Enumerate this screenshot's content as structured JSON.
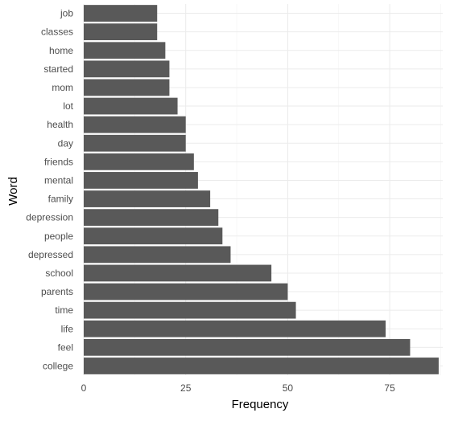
{
  "chart_data": {
    "type": "bar",
    "orientation": "horizontal",
    "xlabel": "Frequency",
    "ylabel": "Word",
    "xlim": [
      0,
      88
    ],
    "xticks": [
      0,
      25,
      50,
      75
    ],
    "grid": true,
    "categories": [
      "job",
      "classes",
      "home",
      "started",
      "mom",
      "lot",
      "health",
      "day",
      "friends",
      "mental",
      "family",
      "depression",
      "people",
      "depressed",
      "school",
      "parents",
      "time",
      "life",
      "feel",
      "college"
    ],
    "values": [
      18,
      18,
      20,
      21,
      21,
      23,
      25,
      25,
      27,
      28,
      31,
      33,
      34,
      36,
      46,
      50,
      52,
      74,
      80,
      87
    ],
    "bar_color": "#595959"
  }
}
